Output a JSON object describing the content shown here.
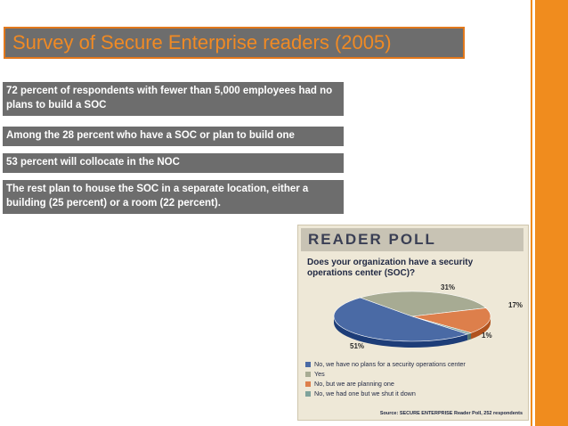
{
  "slide": {
    "title": "Survey of Secure Enterprise readers (2005)",
    "notes": [
      "72 percent of respondents with fewer than 5,000 employees had no plans to build a SOC",
      "Among the 28 percent who have a SOC or plan to build one",
      "53 percent will collocate in the NOC",
      "The rest plan to house the SOC in a separate location, either a building (25 percent) or a room (22 percent)."
    ]
  },
  "poll": {
    "banner": "READER POLL",
    "question": "Does your organization have a security operations center (SOC)?",
    "source": "Source: SECURE ENTERPRISE Reader Poll, 252 respondents"
  },
  "chart_data": {
    "type": "pie",
    "title": "Does your organization have a security operations center (SOC)?",
    "slices": [
      {
        "label": "No, we have no plans for a security operations center",
        "value": 51,
        "display": "51%",
        "color": "#4a6aa5"
      },
      {
        "label": "Yes",
        "value": 31,
        "display": "31%",
        "color": "#a7ab93"
      },
      {
        "label": "No, but we are planning one",
        "value": 17,
        "display": "17%",
        "color": "#dd7f4b"
      },
      {
        "label": "No, we had one but we shut it down",
        "value": 1,
        "display": "1%",
        "color": "#7fa39c"
      }
    ],
    "legend_position": "bottom"
  },
  "colors": {
    "accent": "#f08c1e",
    "box": "#6d6d6d",
    "title_text": "#f08a24"
  }
}
